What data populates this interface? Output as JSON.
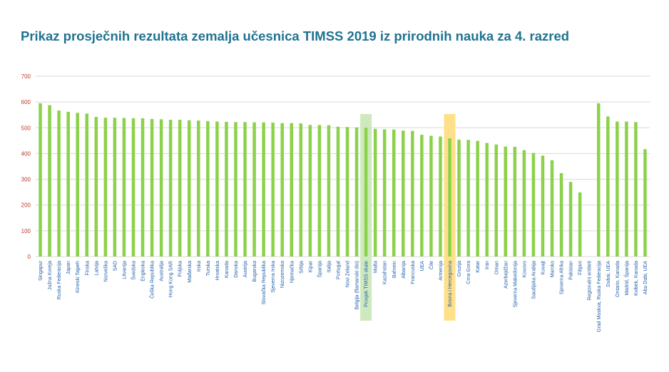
{
  "title": "Prikaz prosječnih rezultata zemalja učesnica TIMSS 2019 iz prirodnih nauka za 4. razred",
  "colors": {
    "bar": "#8cd14a",
    "grid": "#d9d9d9",
    "title": "#1f7391",
    "tick_label": "#c0392b",
    "category_label": "#1f5fa8",
    "highlight_green": "#cfe9bf",
    "highlight_yellow": "#ffe08a"
  },
  "chart_data": {
    "type": "bar",
    "title": "Prikaz prosječnih rezultata zemalja učesnica TIMSS 2019 iz prirodnih nauka za 4. razred",
    "xlabel": "",
    "ylabel": "",
    "ylim": [
      0,
      700
    ],
    "yticks": [
      0,
      100,
      200,
      300,
      400,
      500,
      600,
      700
    ],
    "grid": true,
    "legend": "none",
    "highlights": [
      {
        "category": "Prosjek TIMSS skale",
        "color": "green"
      },
      {
        "category": "Bosna i Hercegovina",
        "color": "yellow"
      }
    ],
    "categories": [
      "Singapur",
      "Južna Koreja",
      "Ruska Federacija",
      "Japan",
      "Kineski Tajpeh",
      "Finska",
      "Latvija",
      "Norveška",
      "SAD",
      "Litvanija",
      "Švedska",
      "Engleska",
      "Češka Republika",
      "Australija",
      "Hong Kong SAR",
      "Poljska",
      "Mađarska",
      "Irska",
      "Turska",
      "Hrvatska",
      "Kanada",
      "Danska",
      "Austrija",
      "Bugarska",
      "Slovačka Republika",
      "Sjeverna Irska",
      "Nizozemska",
      "Njemačka",
      "Srbija",
      "Kipar",
      "Španija",
      "Italija",
      "Portugal",
      "Novi Zeland",
      "Belgija (flamanski dio)",
      "Prosjek TIMSS skale",
      "Malta",
      "Kazahstan",
      "Bahrein",
      "Albanija",
      "Francuska",
      "UEA",
      "Čile",
      "Armenija",
      "Bosna i Hercegovina",
      "Gruzija",
      "Crna Gora",
      "Katar",
      "Iran",
      "Oman",
      "Azerbejdžan",
      "Sjeverna Makedonija",
      "Kosovo",
      "Saudijska Arabija",
      "Kuvajt",
      "Maroko",
      "Sjeverna Afrika",
      "Pakistan",
      "Filipini",
      "Regionalni entiteti",
      "Grad Moskva, Ruska Federacija",
      "Dubai, UEA",
      "Ontario, Kanada",
      "Madrid, Španija",
      "Kvibek, Kanada",
      "Abu Dabi, UEA"
    ],
    "values": [
      595,
      588,
      567,
      562,
      558,
      555,
      542,
      539,
      539,
      538,
      537,
      537,
      534,
      533,
      531,
      531,
      529,
      528,
      526,
      524,
      523,
      522,
      522,
      521,
      521,
      520,
      518,
      518,
      517,
      511,
      511,
      510,
      504,
      503,
      501,
      500,
      496,
      494,
      493,
      489,
      488,
      473,
      469,
      466,
      459,
      454,
      453,
      449,
      441,
      435,
      427,
      426,
      413,
      402,
      392,
      374,
      324,
      290,
      249,
      null,
      595,
      544,
      524,
      524,
      522,
      417
    ]
  }
}
